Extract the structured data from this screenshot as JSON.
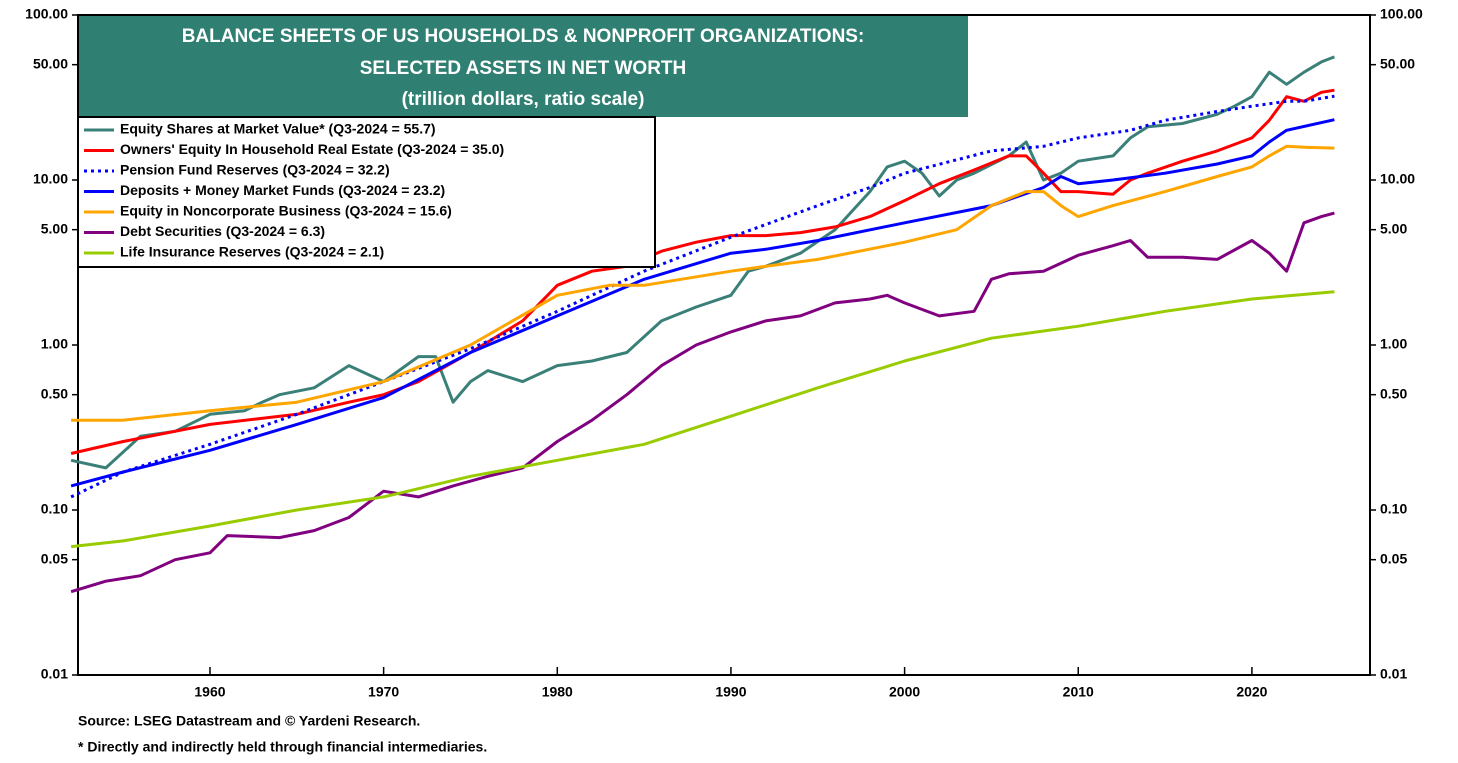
{
  "chart_data": {
    "type": "line",
    "title": [
      "BALANCE SHEETS OF US HOUSEHOLDS & NONPROFIT ORGANIZATIONS:",
      "SELECTED ASSETS IN NET WORTH",
      "(trillion dollars, ratio scale)"
    ],
    "notes": [
      "Source: LSEG Datastream and © Yardeni Research.",
      "* Directly and indirectly held through financial intermediaries."
    ],
    "log_scale": true,
    "xlim": [
      1952.4,
      2026.8
    ],
    "xticks": [
      1960,
      1970,
      1980,
      1990,
      2000,
      2010,
      2020
    ],
    "ylim": [
      0.01,
      100
    ],
    "yticks": [
      {
        "value": 100,
        "label": "100.00"
      },
      {
        "value": 50,
        "label": "50.00"
      },
      {
        "value": 10,
        "label": "10.00"
      },
      {
        "value": 5,
        "label": "5.00"
      },
      {
        "value": 1,
        "label": "1.00"
      },
      {
        "value": 0.5,
        "label": "0.50"
      },
      {
        "value": 0.1,
        "label": "0.10"
      },
      {
        "value": 0.05,
        "label": "0.05"
      },
      {
        "value": 0.01,
        "label": "0.01"
      }
    ],
    "y2lim": [
      0.01,
      100
    ],
    "y2ticks": [
      {
        "value": 100,
        "label": "100.00"
      },
      {
        "value": 50,
        "label": "50.00"
      },
      {
        "value": 10,
        "label": "10.00"
      },
      {
        "value": 5,
        "label": "5.00"
      },
      {
        "value": 1,
        "label": "1.00"
      },
      {
        "value": 0.5,
        "label": "0.50"
      },
      {
        "value": 0.1,
        "label": "0.10"
      },
      {
        "value": 0.05,
        "label": "0.05"
      },
      {
        "value": 0.01,
        "label": "0.01"
      }
    ],
    "legend": "upper left",
    "series": [
      {
        "name": "Equity Shares at Market Value* (Q3-2024 = 55.7)",
        "color": "#3a8078",
        "x": [
          1952,
          1954,
          1956,
          1958,
          1960,
          1962,
          1963,
          1964,
          1966,
          1968,
          1970,
          1972,
          1973,
          1974,
          1975,
          1976,
          1978,
          1980,
          1982,
          1984,
          1986,
          1988,
          1990,
          1991,
          1992,
          1994,
          1996,
          1998,
          1999,
          2000,
          2001,
          2002,
          2003,
          2004,
          2006,
          2007,
          2008,
          2009,
          2010,
          2012,
          2013,
          2014,
          2016,
          2018,
          2019,
          2020,
          2021,
          2022,
          2023,
          2024,
          2024.75
        ],
        "values": [
          0.2,
          0.18,
          0.28,
          0.3,
          0.38,
          0.4,
          0.45,
          0.5,
          0.55,
          0.75,
          0.6,
          0.85,
          0.85,
          0.45,
          0.6,
          0.7,
          0.6,
          0.75,
          0.8,
          0.9,
          1.4,
          1.7,
          2.0,
          2.8,
          3.0,
          3.6,
          5.0,
          8.5,
          12,
          13,
          11,
          8,
          10,
          11,
          14,
          17,
          10,
          11,
          13,
          14,
          18,
          21,
          22,
          25,
          28,
          32,
          45,
          38,
          45,
          52,
          55.7
        ]
      },
      {
        "name": "Owners' Equity In Household Real Estate (Q3-2024 = 35.0)",
        "color": "#ff0000",
        "x": [
          1952,
          1955,
          1960,
          1965,
          1968,
          1970,
          1972,
          1975,
          1978,
          1980,
          1982,
          1984,
          1986,
          1988,
          1990,
          1992,
          1994,
          1996,
          1998,
          2000,
          2002,
          2004,
          2006,
          2007,
          2008,
          2009,
          2010,
          2012,
          2013,
          2014,
          2016,
          2018,
          2020,
          2021,
          2022,
          2023,
          2024,
          2024.75
        ],
        "values": [
          0.22,
          0.26,
          0.33,
          0.38,
          0.45,
          0.5,
          0.6,
          0.9,
          1.4,
          2.3,
          2.8,
          3.0,
          3.7,
          4.2,
          4.6,
          4.6,
          4.8,
          5.2,
          6.0,
          7.5,
          9.5,
          11.5,
          14,
          14,
          11,
          8.5,
          8.5,
          8.2,
          10,
          11,
          13,
          15,
          18,
          23,
          32,
          30,
          34,
          35
        ]
      },
      {
        "name": "Pension Fund Reserves (Q3-2024 = 32.2)",
        "color": "#0000ff",
        "dashed": true,
        "x": [
          1952,
          1955,
          1960,
          1965,
          1970,
          1975,
          1980,
          1985,
          1990,
          1995,
          1998,
          2000,
          2005,
          2008,
          2010,
          2013,
          2015,
          2018,
          2020,
          2022,
          2023,
          2024.75
        ],
        "values": [
          0.12,
          0.17,
          0.25,
          0.38,
          0.6,
          0.95,
          1.6,
          2.8,
          4.5,
          7,
          9,
          11,
          15,
          16,
          18,
          20,
          23,
          26,
          28,
          30,
          30,
          32.2
        ]
      },
      {
        "name": "Deposits + Money Market Funds (Q3-2024 = 23.2)",
        "color": "#0000ff",
        "x": [
          1952,
          1955,
          1960,
          1965,
          1970,
          1975,
          1980,
          1985,
          1990,
          1992,
          1995,
          2000,
          2005,
          2008,
          2009,
          2010,
          2012,
          2015,
          2018,
          2020,
          2021,
          2022,
          2024.75
        ],
        "values": [
          0.14,
          0.17,
          0.23,
          0.33,
          0.48,
          0.9,
          1.5,
          2.5,
          3.6,
          3.8,
          4.3,
          5.5,
          7,
          9,
          10.5,
          9.5,
          10,
          11,
          12.5,
          14,
          17,
          20,
          23.2
        ]
      },
      {
        "name": "Equity in Noncorporate Business (Q3-2024 = 15.6)",
        "color": "#ffa500",
        "x": [
          1952,
          1955,
          1960,
          1965,
          1970,
          1975,
          1980,
          1983,
          1985,
          1990,
          1992,
          1995,
          2000,
          2003,
          2005,
          2007,
          2008,
          2009,
          2010,
          2012,
          2015,
          2018,
          2020,
          2021,
          2022,
          2023,
          2024.75
        ],
        "values": [
          0.35,
          0.35,
          0.4,
          0.45,
          0.6,
          1.0,
          2.0,
          2.3,
          2.3,
          2.8,
          3.0,
          3.3,
          4.2,
          5,
          7,
          8.5,
          8.5,
          7,
          6,
          7,
          8.5,
          10.5,
          12,
          14,
          16,
          15.8,
          15.6
        ]
      },
      {
        "name": "Debt Securities  (Q3-2024 = 6.3)",
        "color": "#800080",
        "x": [
          1952,
          1954,
          1956,
          1958,
          1960,
          1961,
          1964,
          1966,
          1968,
          1970,
          1972,
          1974,
          1976,
          1978,
          1980,
          1982,
          1984,
          1986,
          1988,
          1990,
          1992,
          1994,
          1996,
          1998,
          1999,
          2000,
          2002,
          2004,
          2005,
          2006,
          2008,
          2010,
          2012,
          2013,
          2014,
          2016,
          2018,
          2020,
          2021,
          2022,
          2023,
          2024,
          2024.75
        ],
        "values": [
          0.032,
          0.037,
          0.04,
          0.05,
          0.055,
          0.07,
          0.068,
          0.075,
          0.09,
          0.13,
          0.12,
          0.14,
          0.16,
          0.18,
          0.26,
          0.35,
          0.5,
          0.75,
          1.0,
          1.2,
          1.4,
          1.5,
          1.8,
          1.9,
          2.0,
          1.8,
          1.5,
          1.6,
          2.5,
          2.7,
          2.8,
          3.5,
          4.0,
          4.3,
          3.4,
          3.4,
          3.3,
          4.3,
          3.6,
          2.8,
          5.5,
          6.0,
          6.3
        ]
      },
      {
        "name": "Life Insurance Reserves (Q3-2024 = 2.1)",
        "color": "#99cc00",
        "x": [
          1952,
          1955,
          1960,
          1965,
          1970,
          1975,
          1980,
          1985,
          1990,
          1995,
          2000,
          2005,
          2010,
          2015,
          2020,
          2024.75
        ],
        "values": [
          0.06,
          0.065,
          0.08,
          0.1,
          0.12,
          0.16,
          0.2,
          0.25,
          0.37,
          0.55,
          0.8,
          1.1,
          1.3,
          1.6,
          1.9,
          2.1
        ]
      }
    ]
  }
}
